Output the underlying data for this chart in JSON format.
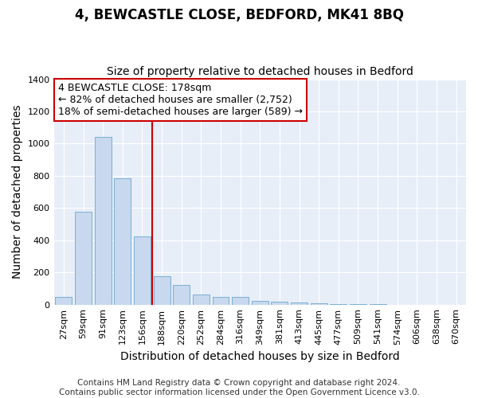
{
  "title": "4, BEWCASTLE CLOSE, BEDFORD, MK41 8BQ",
  "subtitle": "Size of property relative to detached houses in Bedford",
  "xlabel": "Distribution of detached houses by size in Bedford",
  "ylabel": "Number of detached properties",
  "categories": [
    "27sqm",
    "59sqm",
    "91sqm",
    "123sqm",
    "156sqm",
    "188sqm",
    "220sqm",
    "252sqm",
    "284sqm",
    "316sqm",
    "349sqm",
    "381sqm",
    "413sqm",
    "445sqm",
    "477sqm",
    "509sqm",
    "541sqm",
    "574sqm",
    "606sqm",
    "638sqm",
    "670sqm"
  ],
  "values": [
    48,
    578,
    1040,
    785,
    425,
    178,
    120,
    62,
    48,
    48,
    22,
    18,
    15,
    10,
    4,
    2,
    1,
    0,
    0,
    0,
    0
  ],
  "bar_color": "#c8d8ee",
  "bar_edge_color": "#7aafd4",
  "vline_color": "#cc0000",
  "vline_index": 5,
  "property_label": "4 BEWCASTLE CLOSE: 178sqm",
  "annotation_line1": "← 82% of detached houses are smaller (2,752)",
  "annotation_line2": "18% of semi-detached houses are larger (589) →",
  "annotation_box_facecolor": "#ffffff",
  "annotation_box_edgecolor": "#cc0000",
  "ylim": [
    0,
    1400
  ],
  "yticks": [
    0,
    200,
    400,
    600,
    800,
    1000,
    1200,
    1400
  ],
  "footer_line1": "Contains HM Land Registry data © Crown copyright and database right 2024.",
  "footer_line2": "Contains public sector information licensed under the Open Government Licence v3.0.",
  "background_color": "#ffffff",
  "plot_background": "#e8eef8",
  "grid_color": "#ffffff",
  "title_fontsize": 12,
  "subtitle_fontsize": 10,
  "axis_label_fontsize": 10,
  "tick_fontsize": 8,
  "annotation_fontsize": 9,
  "footer_fontsize": 7.5
}
